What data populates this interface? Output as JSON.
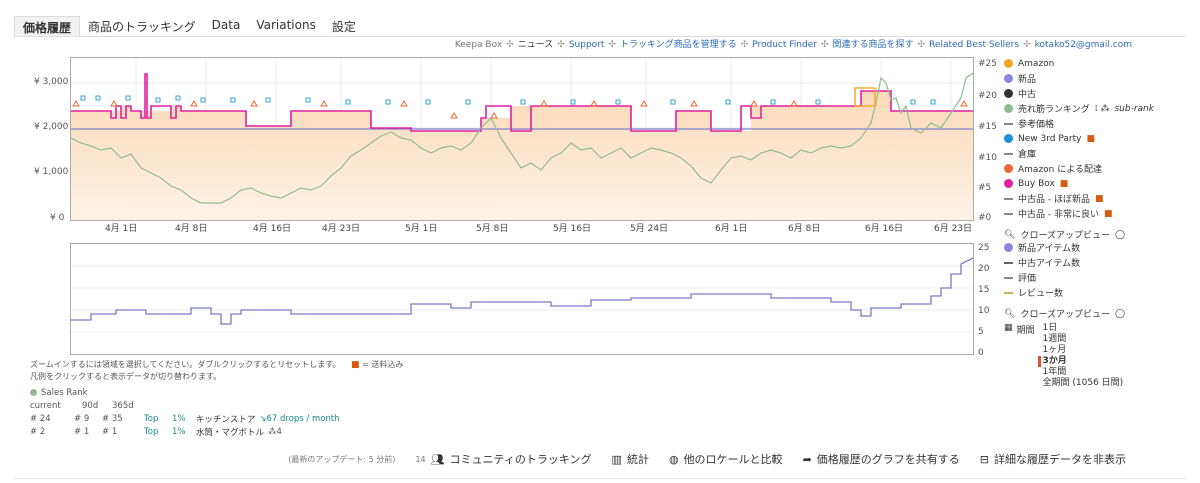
{
  "tabs": [
    "価格履歴",
    "商品のトラッキング",
    "Data",
    "Variations",
    "設定"
  ],
  "toplinks": {
    "keepa_box": "Keepa Box",
    "items": [
      "ニュース",
      "Support",
      "トラッキング商品を管理する",
      "Product Finder",
      "関連する商品を探す",
      "Related Best Sellers"
    ],
    "email": "kotako52@gmail.com"
  },
  "main_chart": {
    "y_left": [
      "¥ 3,000",
      "¥ 2,000",
      "¥ 1,000",
      "¥ 0"
    ],
    "y_right": [
      "#25",
      "#20",
      "#15",
      "#10",
      "#5",
      "#0"
    ],
    "x": [
      "4月 1日",
      "4月 8日",
      "4月 16日",
      "4月 23日",
      "5月 1日",
      "5月 8日",
      "5月 16日",
      "5月 24日",
      "6月 1日",
      "6月 8日",
      "6月 16日",
      "6月 23日"
    ]
  },
  "lower_chart": {
    "y_right": [
      "25",
      "20",
      "15",
      "10",
      "5",
      "0"
    ]
  },
  "legend_main": [
    {
      "label": "Amazon",
      "color": "#f5a623",
      "shape": "dot"
    },
    {
      "label": "新品",
      "color": "#8888dd",
      "shape": "dot"
    },
    {
      "label": "中古",
      "color": "#333333",
      "shape": "dot"
    },
    {
      "label": "売れ筋ランキング",
      "color": "#8fbc8f",
      "shape": "dot",
      "suffix": "sub-rank"
    },
    {
      "label": "参考価格",
      "color": "#888888",
      "shape": "dash"
    },
    {
      "label": "New 3rd Party",
      "color": "#1f8fd6",
      "shape": "dot",
      "truck": true
    },
    {
      "label": "倉庫",
      "color": "#888888",
      "shape": "dash"
    },
    {
      "label": "Amazon による配達",
      "color": "#ee6633",
      "shape": "dot"
    },
    {
      "label": "Buy Box",
      "color": "#e020a0",
      "shape": "dot",
      "truck": true
    },
    {
      "label": "中古品 - ほぼ新品",
      "color": "#888888",
      "shape": "dash",
      "truck": true
    },
    {
      "label": "中古品 - 非常に良い",
      "color": "#888888",
      "shape": "dash",
      "truck": true
    }
  ],
  "closeup1": "クローズアップビュー",
  "legend_lower": [
    {
      "label": "新品アイテム数",
      "color": "#8888dd",
      "shape": "dot"
    },
    {
      "label": "中古アイテム数",
      "color": "#666666",
      "shape": "dash"
    },
    {
      "label": "評価",
      "color": "#888888",
      "shape": "dash"
    },
    {
      "label": "レビュー数",
      "color": "#c8b060",
      "shape": "dash"
    }
  ],
  "closeup2": "クローズアップビュー",
  "period": {
    "label": "期間",
    "options": [
      "1日",
      "1週間",
      "1ヶ月",
      "3か月",
      "1年間",
      "全期間 (1056 日間)"
    ],
    "selected": "3か月"
  },
  "hints": {
    "zoom": "ズームインするには領域を選択してください。ダブルクリックするとリセットします。",
    "shipping": "= 送料込み",
    "legend_click": "凡例をクリックすると表示データが切り替わります。"
  },
  "sales_rank": {
    "title": "Sales Rank",
    "headers": [
      "current",
      "90d",
      "365d"
    ],
    "rows": [
      {
        "current": "# 24",
        "d90": "# 9",
        "d365": "# 35",
        "top": "Top",
        "pct": "1%",
        "category": "キッチンストア",
        "extra": "67 drops / month"
      },
      {
        "current": "# 2",
        "d90": "# 1",
        "d365": "# 1",
        "top": "Top",
        "pct": "1%",
        "category": "水筒・マグボトル",
        "extra": "4"
      }
    ]
  },
  "footer": {
    "updated": "(最新のアップデート: 5 分前)",
    "community_count": "14",
    "community": "コミュニティのトラッキング",
    "stats": "統計",
    "compare": "他のロケールと比較",
    "share": "価格履歴のグラフを共有する",
    "hide": "詳細な履歴データを非表示"
  }
}
